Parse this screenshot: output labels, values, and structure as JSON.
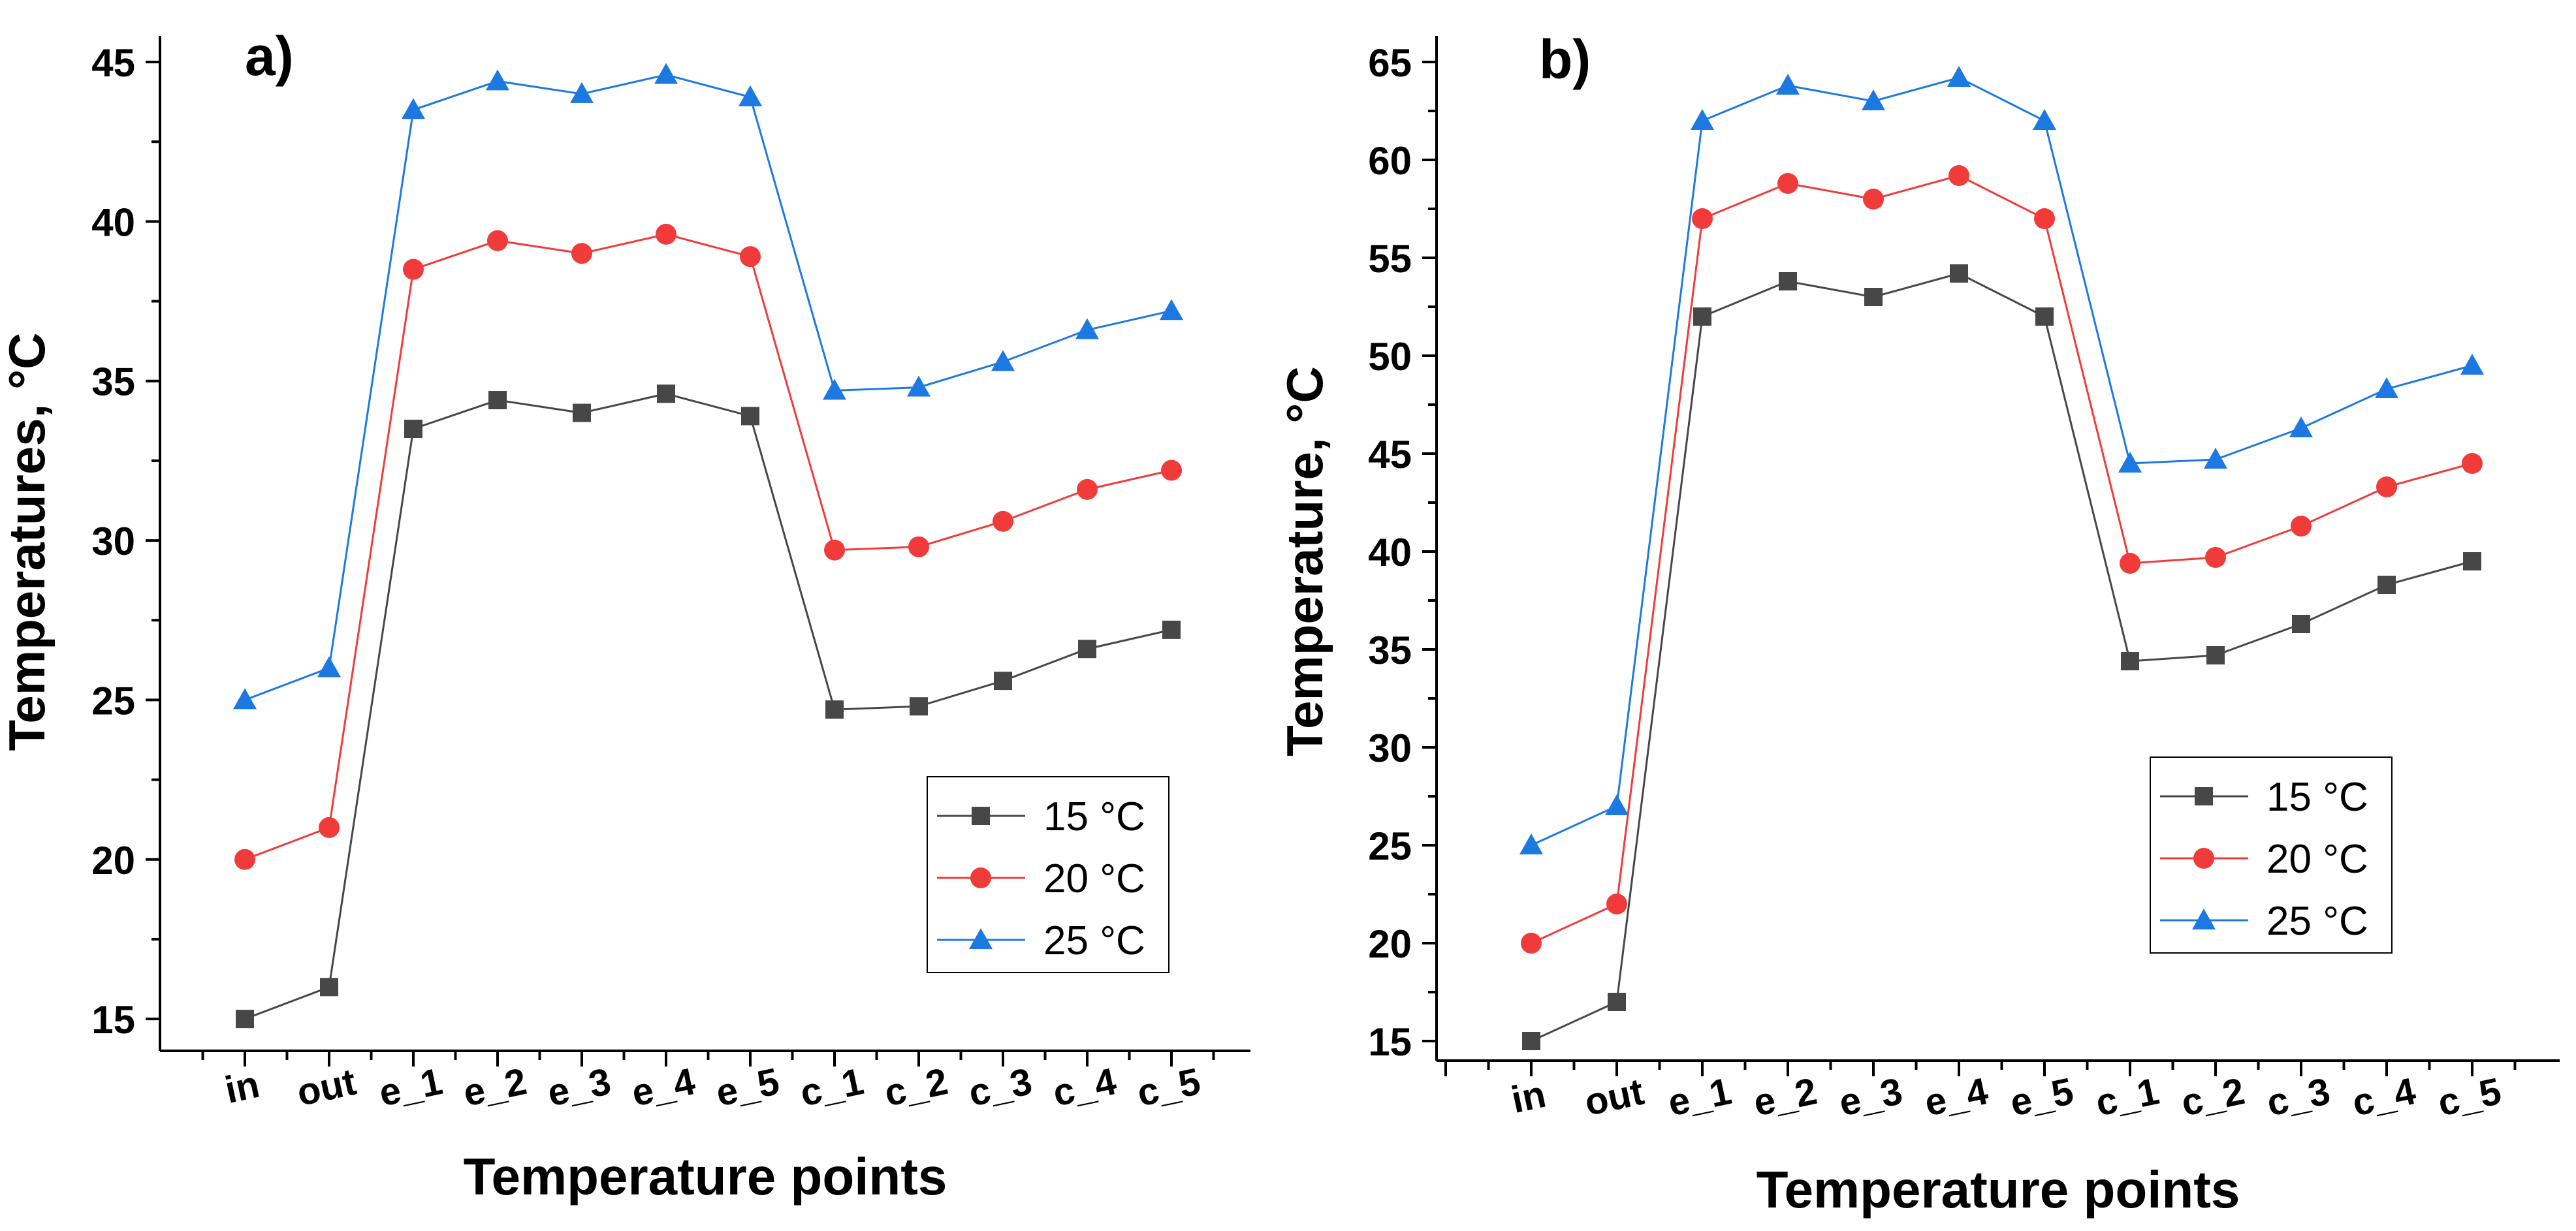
{
  "chart_data": [
    {
      "type": "line",
      "panel_label": "a)",
      "categories": [
        "in",
        "out",
        "e_1",
        "e_2",
        "e_3",
        "e_4",
        "e_5",
        "c_1",
        "c_2",
        "c_3",
        "c_4",
        "c_5"
      ],
      "series": [
        {
          "name": "15 °C",
          "color": "#474747",
          "marker": "square",
          "values": [
            15.0,
            16.0,
            33.5,
            34.4,
            34.0,
            34.6,
            33.9,
            24.7,
            24.8,
            25.6,
            26.6,
            27.2
          ]
        },
        {
          "name": "20 °C",
          "color": "#f13b3b",
          "marker": "circle",
          "values": [
            20.0,
            21.0,
            38.5,
            39.4,
            39.0,
            39.6,
            38.9,
            29.7,
            29.8,
            30.6,
            31.6,
            32.2
          ]
        },
        {
          "name": "25 °C",
          "color": "#1d79e2",
          "marker": "triangle",
          "values": [
            25.0,
            26.0,
            43.5,
            44.4,
            44.0,
            44.6,
            43.9,
            34.7,
            34.8,
            35.6,
            36.6,
            37.2
          ]
        }
      ],
      "xlabel": "Temperature points",
      "ylabel": "Temperatures,  °C",
      "ylim": [
        14,
        45
      ],
      "yticks": [
        15,
        20,
        25,
        30,
        35,
        40,
        45
      ],
      "legend_position": "bottom-right"
    },
    {
      "type": "line",
      "panel_label": "b)",
      "categories": [
        "in",
        "out",
        "e_1",
        "e_2",
        "e_3",
        "e_4",
        "e_5",
        "c_1",
        "c_2",
        "c_3",
        "c_4",
        "c_5"
      ],
      "series": [
        {
          "name": "15 °C",
          "color": "#474747",
          "marker": "square",
          "values": [
            15.0,
            17.0,
            52.0,
            53.8,
            53.0,
            54.2,
            52.0,
            34.4,
            34.7,
            36.3,
            38.3,
            39.5
          ]
        },
        {
          "name": "20 °C",
          "color": "#f13b3b",
          "marker": "circle",
          "values": [
            20.0,
            22.0,
            57.0,
            58.8,
            58.0,
            59.2,
            57.0,
            39.4,
            39.7,
            41.3,
            43.3,
            44.5
          ]
        },
        {
          "name": "25 °C",
          "color": "#1d79e2",
          "marker": "triangle",
          "values": [
            25.0,
            27.0,
            62.0,
            63.8,
            63.0,
            64.2,
            62.0,
            44.5,
            44.7,
            46.3,
            48.3,
            49.5
          ]
        }
      ],
      "xlabel": "Temperature points",
      "ylabel": "Temperature,  °C",
      "ylim": [
        14,
        65
      ],
      "yticks": [
        15,
        20,
        25,
        30,
        35,
        40,
        45,
        50,
        55,
        60,
        65
      ],
      "legend_position": "bottom-right"
    }
  ]
}
